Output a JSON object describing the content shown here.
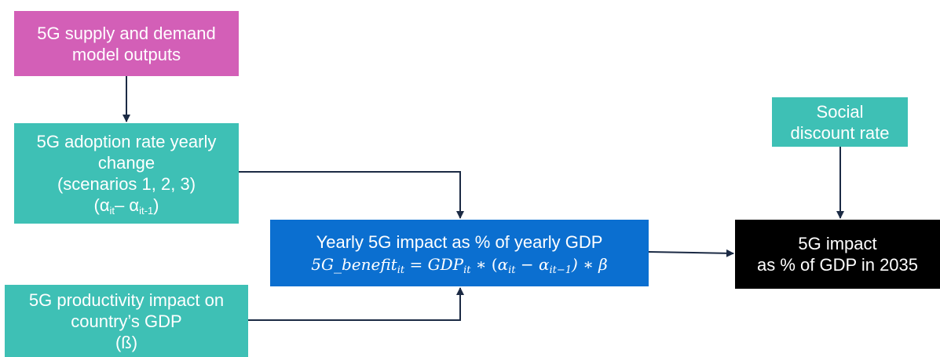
{
  "diagram": {
    "supply_demand": {
      "line1": "5G supply and demand",
      "line2": "model outputs",
      "color": "#d35fb7"
    },
    "adoption": {
      "line1": "5G adoption rate yearly",
      "line2": "change",
      "line3": "(scenarios 1, 2, 3)",
      "alpha": "α",
      "sub_it": "it",
      "dash": "– ",
      "sub_it1": "it-1",
      "open_paren": "(",
      "close_paren": ")",
      "color": "#3ec0b5"
    },
    "productivity": {
      "line1": "5G productivity impact on",
      "line2": "country’s GDP",
      "line3": "(ß)",
      "color": "#3ec0b5"
    },
    "yearly_impact": {
      "line1": "Yearly 5G impact as % of yearly GDP",
      "formula_lhs": "5G_benefit",
      "sub_it": "it",
      "equals": " = ",
      "gdp": "GDP",
      "times_open": " ∗ (",
      "alpha1": "α",
      "minus": " − ",
      "alpha2": "α",
      "sub_it1": "it−1",
      "times_beta": ") ∗ β",
      "color": "#0b6fd0"
    },
    "social_discount": {
      "line1": "Social",
      "line2": "discount rate",
      "color": "#3ec0b5"
    },
    "final_impact": {
      "line1": "5G impact",
      "line2": "as % of GDP in 2035",
      "color": "#000000"
    },
    "arrow_color": "#1b2a44"
  }
}
